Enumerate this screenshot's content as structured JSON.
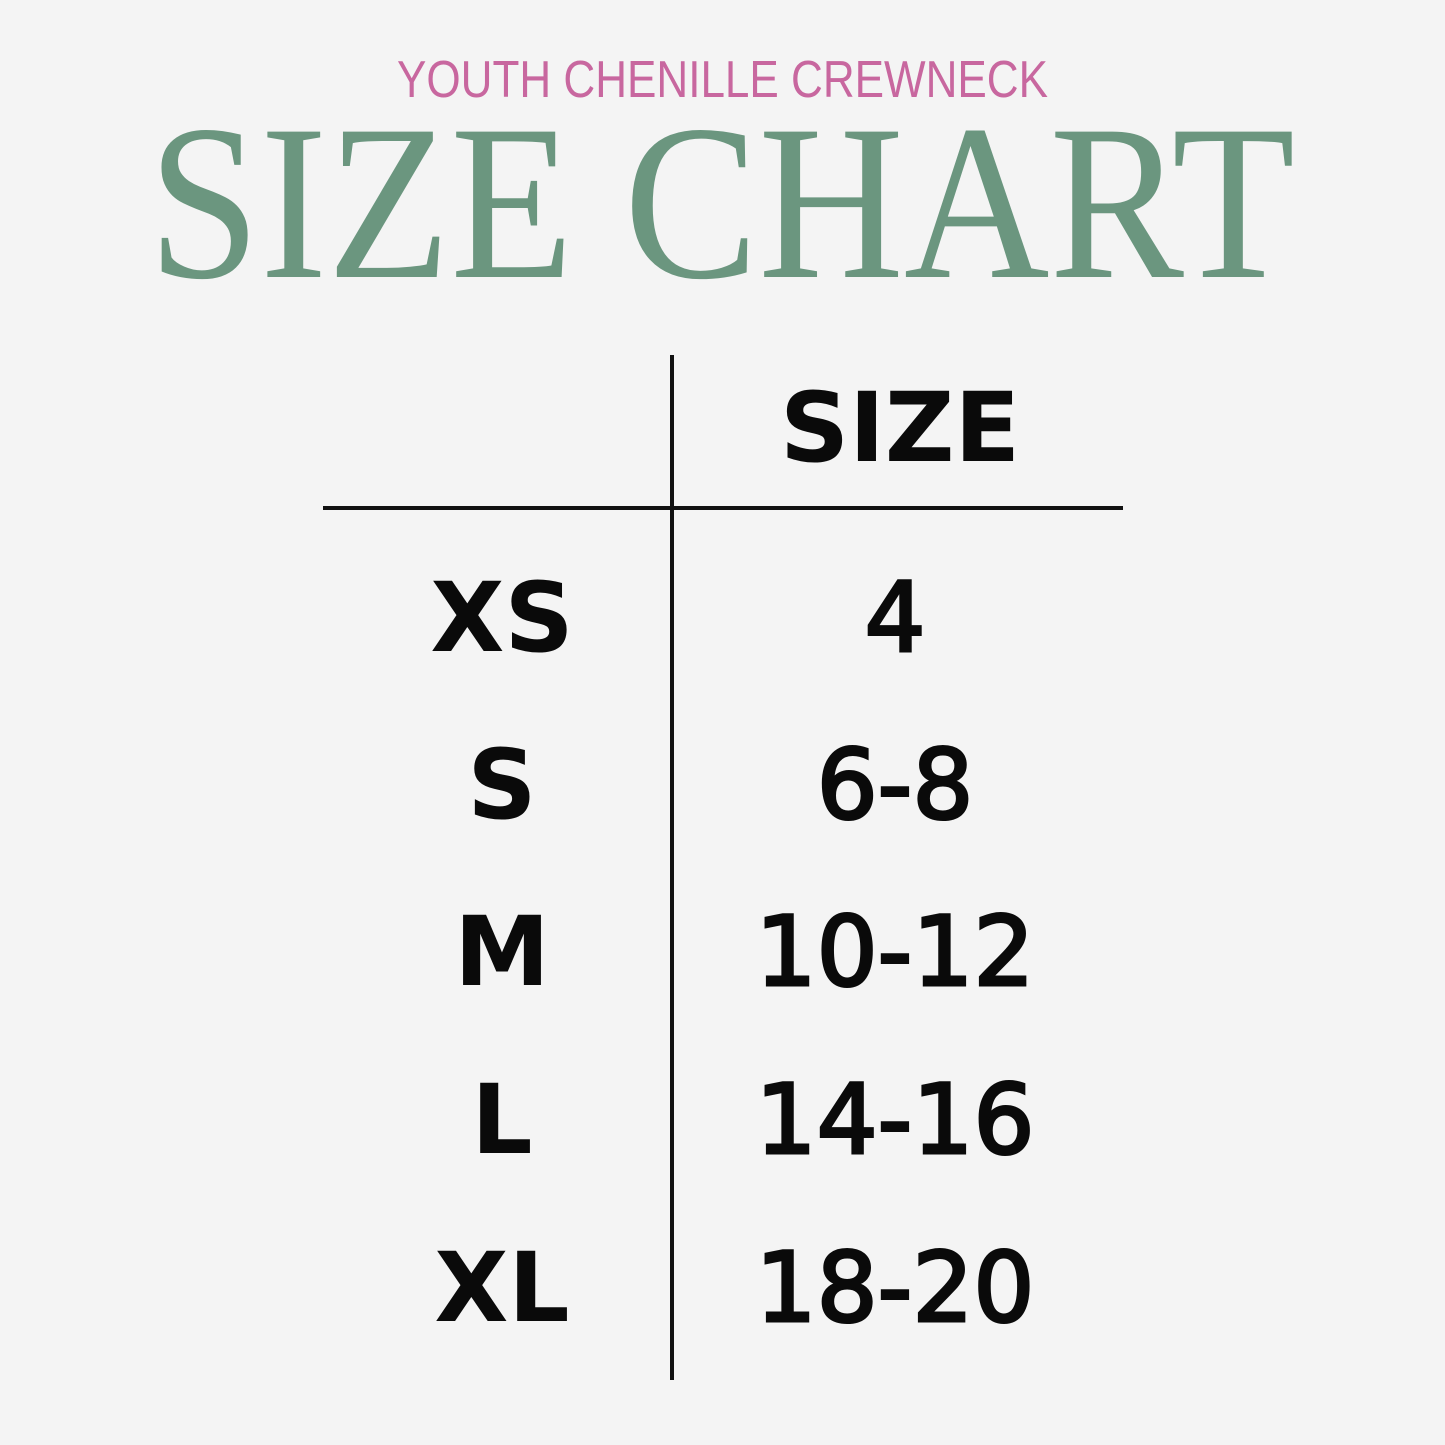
{
  "subtitle": "YOUTH CHENILLE CREWNECK",
  "title": "SIZE CHART",
  "colors": {
    "subtitle": "#c8679f",
    "title": "#6b967f",
    "background": "#f4f4f4",
    "text": "#0a0a0a"
  },
  "table": {
    "header": "SIZE",
    "rows": [
      {
        "label": "XS",
        "size": "4"
      },
      {
        "label": "S",
        "size": "6-8"
      },
      {
        "label": "M",
        "size": "10-12"
      },
      {
        "label": "L",
        "size": "14-16"
      },
      {
        "label": "XL",
        "size": "18-20"
      }
    ]
  }
}
